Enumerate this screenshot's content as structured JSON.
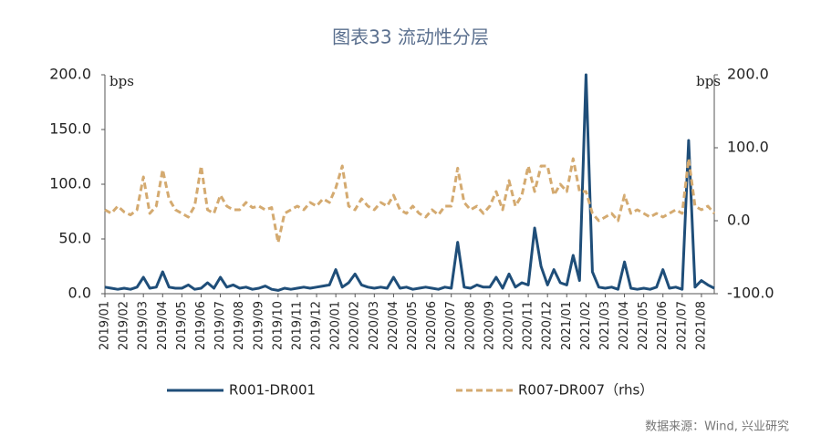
{
  "chart_data": {
    "type": "line",
    "title": "图表33  流动性分层",
    "y_label": "bps",
    "y2_label": "bps",
    "source": "数据来源：Wind, 兴业研究",
    "categories": [
      "2019/01",
      null,
      null,
      "2019/02",
      null,
      null,
      "2019/03",
      null,
      null,
      "2019/04",
      null,
      null,
      "2019/05",
      null,
      null,
      "2019/06",
      null,
      null,
      "2019/07",
      null,
      null,
      "2019/08",
      null,
      null,
      "2019/09",
      null,
      null,
      "2019/10",
      null,
      null,
      "2019/11",
      null,
      null,
      "2019/12",
      null,
      null,
      "2020/01",
      null,
      null,
      "2020/02",
      null,
      null,
      "2020/03",
      null,
      null,
      "2020/04",
      null,
      null,
      "2020/05",
      null,
      null,
      "2020/06",
      null,
      null,
      "2020/07",
      null,
      null,
      "2020/08",
      null,
      null,
      "2020/09",
      null,
      null,
      "2020/10",
      null,
      null,
      "2020/11",
      null,
      null,
      "2020/12",
      null,
      null,
      "2021/01",
      null,
      null,
      "2021/02",
      null,
      null,
      "2021/03",
      null,
      null,
      "2021/04",
      null,
      null,
      "2021/05",
      null,
      null,
      "2021/06",
      null,
      null,
      "2021/07",
      null,
      null,
      "2021/08",
      null,
      null
    ],
    "series": [
      {
        "name": "R001-DR001",
        "color": "#1f4e79",
        "dash": false,
        "values": [
          6,
          5,
          4,
          5,
          4,
          6,
          15,
          5,
          6,
          20,
          6,
          5,
          5,
          8,
          4,
          5,
          10,
          5,
          15,
          6,
          8,
          5,
          6,
          4,
          5,
          7,
          4,
          3,
          5,
          4,
          5,
          6,
          5,
          6,
          7,
          8,
          22,
          6,
          10,
          18,
          8,
          6,
          5,
          6,
          5,
          15,
          5,
          6,
          4,
          5,
          6,
          5,
          4,
          6,
          5,
          47,
          6,
          5,
          8,
          6,
          6,
          15,
          5,
          18,
          6,
          10,
          8,
          60,
          25,
          8,
          22,
          10,
          8,
          35,
          12,
          200,
          20,
          6,
          5,
          6,
          4,
          29,
          5,
          4,
          5,
          4,
          6,
          22,
          5,
          6,
          4,
          140,
          6,
          12,
          8,
          5
        ]
      },
      {
        "name": "R007-DR007（rhs）",
        "color": "#d4aa70",
        "dash": true,
        "axis": "y2",
        "values": [
          15,
          10,
          20,
          12,
          8,
          15,
          60,
          10,
          20,
          70,
          30,
          15,
          10,
          5,
          20,
          75,
          15,
          10,
          35,
          20,
          15,
          15,
          25,
          18,
          20,
          15,
          18,
          -30,
          10,
          15,
          20,
          15,
          25,
          20,
          30,
          25,
          45,
          75,
          20,
          15,
          30,
          20,
          15,
          25,
          20,
          35,
          15,
          10,
          20,
          10,
          5,
          15,
          8,
          20,
          20,
          72,
          25,
          15,
          20,
          10,
          20,
          40,
          15,
          55,
          20,
          35,
          75,
          40,
          75,
          75,
          35,
          50,
          40,
          85,
          40,
          40,
          10,
          0,
          5,
          10,
          0,
          35,
          10,
          15,
          10,
          5,
          10,
          5,
          10,
          15,
          10,
          85,
          20,
          15,
          20,
          10
        ]
      }
    ],
    "ylim": [
      0,
      200
    ],
    "yticks": [
      {
        "value": 0,
        "label": "0.0"
      },
      {
        "value": 50,
        "label": "50.0"
      },
      {
        "value": 100,
        "label": "100.0"
      },
      {
        "value": 150,
        "label": "150.0"
      },
      {
        "value": 200,
        "label": "200.0"
      }
    ],
    "y2lim": [
      -100,
      200
    ],
    "y2ticks": [
      {
        "value": -100,
        "label": "-100.0"
      },
      {
        "value": 0,
        "label": "0.0"
      },
      {
        "value": 100,
        "label": "100.0"
      },
      {
        "value": 200,
        "label": "200.0"
      }
    ],
    "legend": "bottom"
  }
}
